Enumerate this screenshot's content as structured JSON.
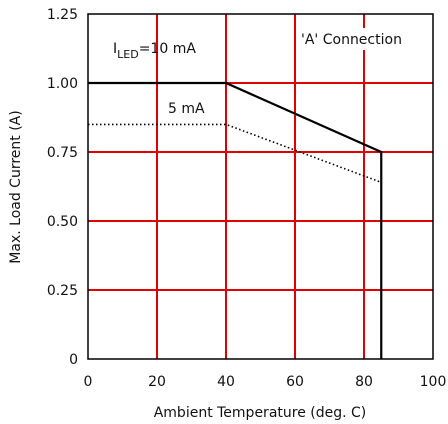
{
  "chart_data": {
    "type": "line",
    "xlabel": "Ambient Temperature (deg. C)",
    "ylabel": "Max. Load Current (A)",
    "xlim": [
      0,
      100
    ],
    "ylim": [
      0,
      1.25
    ],
    "x_ticks": [
      "0",
      "20",
      "40",
      "60",
      "80",
      "100"
    ],
    "y_ticks": [
      "0",
      "0.25",
      "0.50",
      "0.75",
      "1.00",
      "1.25"
    ],
    "grid": true,
    "grid_color": "#e00000",
    "x_gridlines": [
      20,
      40,
      60,
      80
    ],
    "y_gridlines": [
      0.25,
      0.5,
      0.75,
      1.0
    ],
    "series": [
      {
        "name": "10 mA",
        "style": "solid",
        "color": "#000000",
        "x": [
          0,
          40,
          85,
          85
        ],
        "y": [
          1.0,
          1.0,
          0.75,
          0
        ]
      },
      {
        "name": "5 mA",
        "style": "dotted",
        "color": "#000000",
        "x": [
          0,
          40,
          85
        ],
        "y": [
          0.85,
          0.85,
          0.64
        ]
      }
    ],
    "annotations": {
      "series1_prefix": "I",
      "series1_sub": "LED",
      "series1_suffix": "=10 mA",
      "series2": "5 mA",
      "connection": "'A' Connection"
    }
  }
}
